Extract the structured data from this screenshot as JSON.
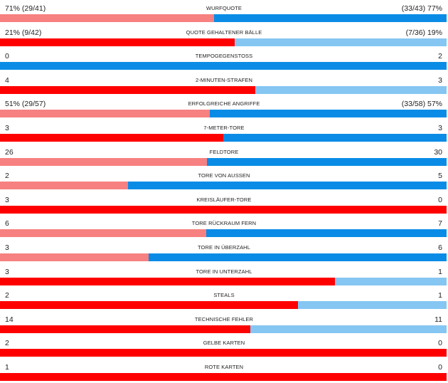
{
  "colors": {
    "home_dark": "#ff0000",
    "home_light": "#f78080",
    "away_dark": "#0a8ce6",
    "away_light": "#85c6f2"
  },
  "stats": [
    {
      "name": "WURFQUOTE",
      "left": "71% (29/41)",
      "right": "(33/43) 77%",
      "left_share": 0.48,
      "type": "percent",
      "left_fill": 0.71,
      "right_fill": 0.77,
      "left_color": "home_light",
      "right_color": "away_dark"
    },
    {
      "name": "QUOTE GEHALTENER BÄLLE",
      "left": "21% (9/42)",
      "right": "(7/36) 19%",
      "left_share": 0.525,
      "type": "percent",
      "left_fill": 0.21,
      "right_fill": 0.19,
      "left_color": "home_dark",
      "right_color": "away_light"
    },
    {
      "name": "TEMPOGEGENSTOSS",
      "left": "0",
      "right": "2",
      "left_share": 0.0,
      "type": "count",
      "left_color": "home_light",
      "right_color": "away_dark"
    },
    {
      "name": "2-MINUTEN-STRAFEN",
      "left": "4",
      "right": "3",
      "left_share": 0.571,
      "type": "count",
      "left_color": "home_dark",
      "right_color": "away_light"
    },
    {
      "name": "ERFOLGREICHE ANGRIFFE",
      "left": "51% (29/57)",
      "right": "(33/58) 57%",
      "left_share": 0.47,
      "type": "percent",
      "left_fill": 0.51,
      "right_fill": 0.57,
      "left_color": "home_light",
      "right_color": "away_dark"
    },
    {
      "name": "7-METER-TORE",
      "left": "3",
      "right": "3",
      "left_share": 0.5,
      "type": "count",
      "left_color": "home_dark",
      "right_color": "away_dark"
    },
    {
      "name": "FELDTORE",
      "left": "26",
      "right": "30",
      "left_share": 0.464,
      "type": "count",
      "left_color": "home_light",
      "right_color": "away_dark"
    },
    {
      "name": "TORE VON AUSSEN",
      "left": "2",
      "right": "5",
      "left_share": 0.286,
      "type": "count",
      "left_color": "home_light",
      "right_color": "away_dark"
    },
    {
      "name": "KREISLÄUFER-TORE",
      "left": "3",
      "right": "0",
      "left_share": 1.0,
      "type": "count",
      "left_color": "home_dark",
      "right_color": "away_light"
    },
    {
      "name": "TORE RÜCKRAUM FERN",
      "left": "6",
      "right": "7",
      "left_share": 0.462,
      "type": "count",
      "left_color": "home_light",
      "right_color": "away_dark"
    },
    {
      "name": "TORE IN ÜBERZAHL",
      "left": "3",
      "right": "6",
      "left_share": 0.333,
      "type": "count",
      "left_color": "home_light",
      "right_color": "away_dark"
    },
    {
      "name": "TORE IN UNTERZAHL",
      "left": "3",
      "right": "1",
      "left_share": 0.75,
      "type": "count",
      "left_color": "home_dark",
      "right_color": "away_light"
    },
    {
      "name": "STEALS",
      "left": "2",
      "right": "1",
      "left_share": 0.667,
      "type": "count",
      "left_color": "home_dark",
      "right_color": "away_light"
    },
    {
      "name": "TECHNISCHE FEHLER",
      "left": "14",
      "right": "11",
      "left_share": 0.56,
      "type": "count",
      "left_color": "home_dark",
      "right_color": "away_light"
    },
    {
      "name": "GELBE KARTEN",
      "left": "2",
      "right": "0",
      "left_share": 1.0,
      "type": "count",
      "left_color": "home_dark",
      "right_color": "away_light"
    },
    {
      "name": "ROTE KARTEN",
      "left": "1",
      "right": "0",
      "left_share": 1.0,
      "type": "count",
      "left_color": "home_dark",
      "right_color": "away_light"
    }
  ]
}
